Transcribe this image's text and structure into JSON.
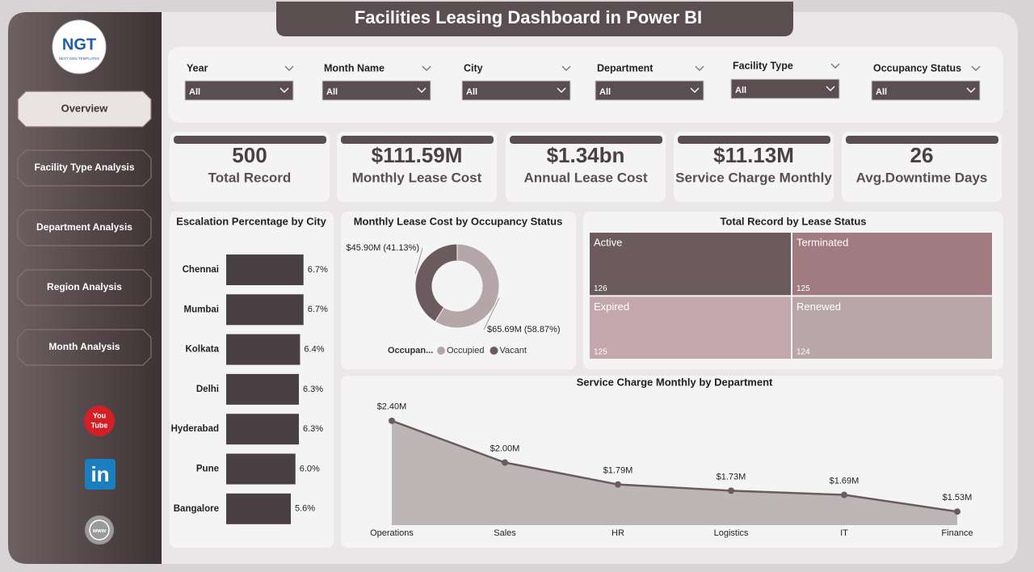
{
  "header": {
    "title": "Facilities Leasing Dashboard in Power BI"
  },
  "logo": {
    "text": "NGT",
    "subtext": "NEXT GEN TEMPLATES"
  },
  "nav": {
    "items": [
      "Overview",
      "Facility Type Analysis",
      "Department Analysis",
      "Region Analysis",
      "Month Analysis"
    ],
    "active": 0
  },
  "social": {
    "youtube": [
      "You",
      "Tube"
    ],
    "linkedin": "in",
    "web": "www"
  },
  "filters": [
    {
      "label": "Year",
      "value": "All"
    },
    {
      "label": "Month Name",
      "value": "All"
    },
    {
      "label": "City",
      "value": "All"
    },
    {
      "label": "Department",
      "value": "All"
    },
    {
      "label": "Facility Type",
      "value": "All"
    },
    {
      "label": "Occupancy Status",
      "value": "All"
    }
  ],
  "kpis": [
    {
      "value": 500,
      "label": "Total Record"
    },
    {
      "value": "$111.59M",
      "label": "Monthly Lease Cost"
    },
    {
      "value": "$1.34bn",
      "label": "Annual Lease Cost"
    },
    {
      "value": "$11.13M",
      "label": "Service Charge Monthly"
    },
    {
      "value": 26,
      "label": "Avg.Downtime Days"
    }
  ],
  "charts": [
    {
      "type": "bar",
      "title": "Escalation Percentage by City",
      "categories": [
        "Chennai",
        "Mumbai",
        "Kolkata",
        "Delhi",
        "Hyderabad",
        "Pune",
        "Bangalore"
      ],
      "values": [
        6.7,
        6.7,
        6.4,
        6.3,
        6.3,
        6.0,
        5.6
      ],
      "value_labels": [
        "6.7%",
        "6.7%",
        "6.4%",
        "6.3%",
        "6.3%",
        "6.0%",
        "5.6%"
      ],
      "color": "#4a3f42",
      "xlim": [
        0,
        7
      ]
    },
    {
      "type": "donut",
      "title": "Monthly Lease Cost by Occupancy Status",
      "legend_title": "Occupan...",
      "categories": [
        "Occupied",
        "Vacant"
      ],
      "values": [
        65.69,
        45.9
      ],
      "value_labels": [
        "$65.69M (58.87%)",
        "$45.90M (41.13%)"
      ],
      "colors": [
        "#b5a7a9",
        "#6b5b5e"
      ]
    },
    {
      "type": "treemap",
      "title": "Total Record by Lease Status",
      "categories": [
        "Active",
        "Terminated",
        "Expired",
        "Renewed"
      ],
      "values": [
        126,
        125,
        125,
        124
      ],
      "colors": [
        "#6b5b5e",
        "#a07b80",
        "#c4a7ac",
        "#b9a6a9"
      ]
    },
    {
      "type": "area",
      "title": "Service Charge Monthly by Department",
      "categories": [
        "Operations",
        "Sales",
        "HR",
        "Logistics",
        "IT",
        "Finance"
      ],
      "values": [
        2.4,
        2.0,
        1.79,
        1.73,
        1.69,
        1.53
      ],
      "value_labels": [
        "$2.40M",
        "$2.00M",
        "$1.79M",
        "$1.73M",
        "$1.69M",
        "$1.53M"
      ],
      "color": "#6b5b5e",
      "fill": "#bdb6b7",
      "ylim": [
        1.4,
        2.6
      ]
    }
  ]
}
